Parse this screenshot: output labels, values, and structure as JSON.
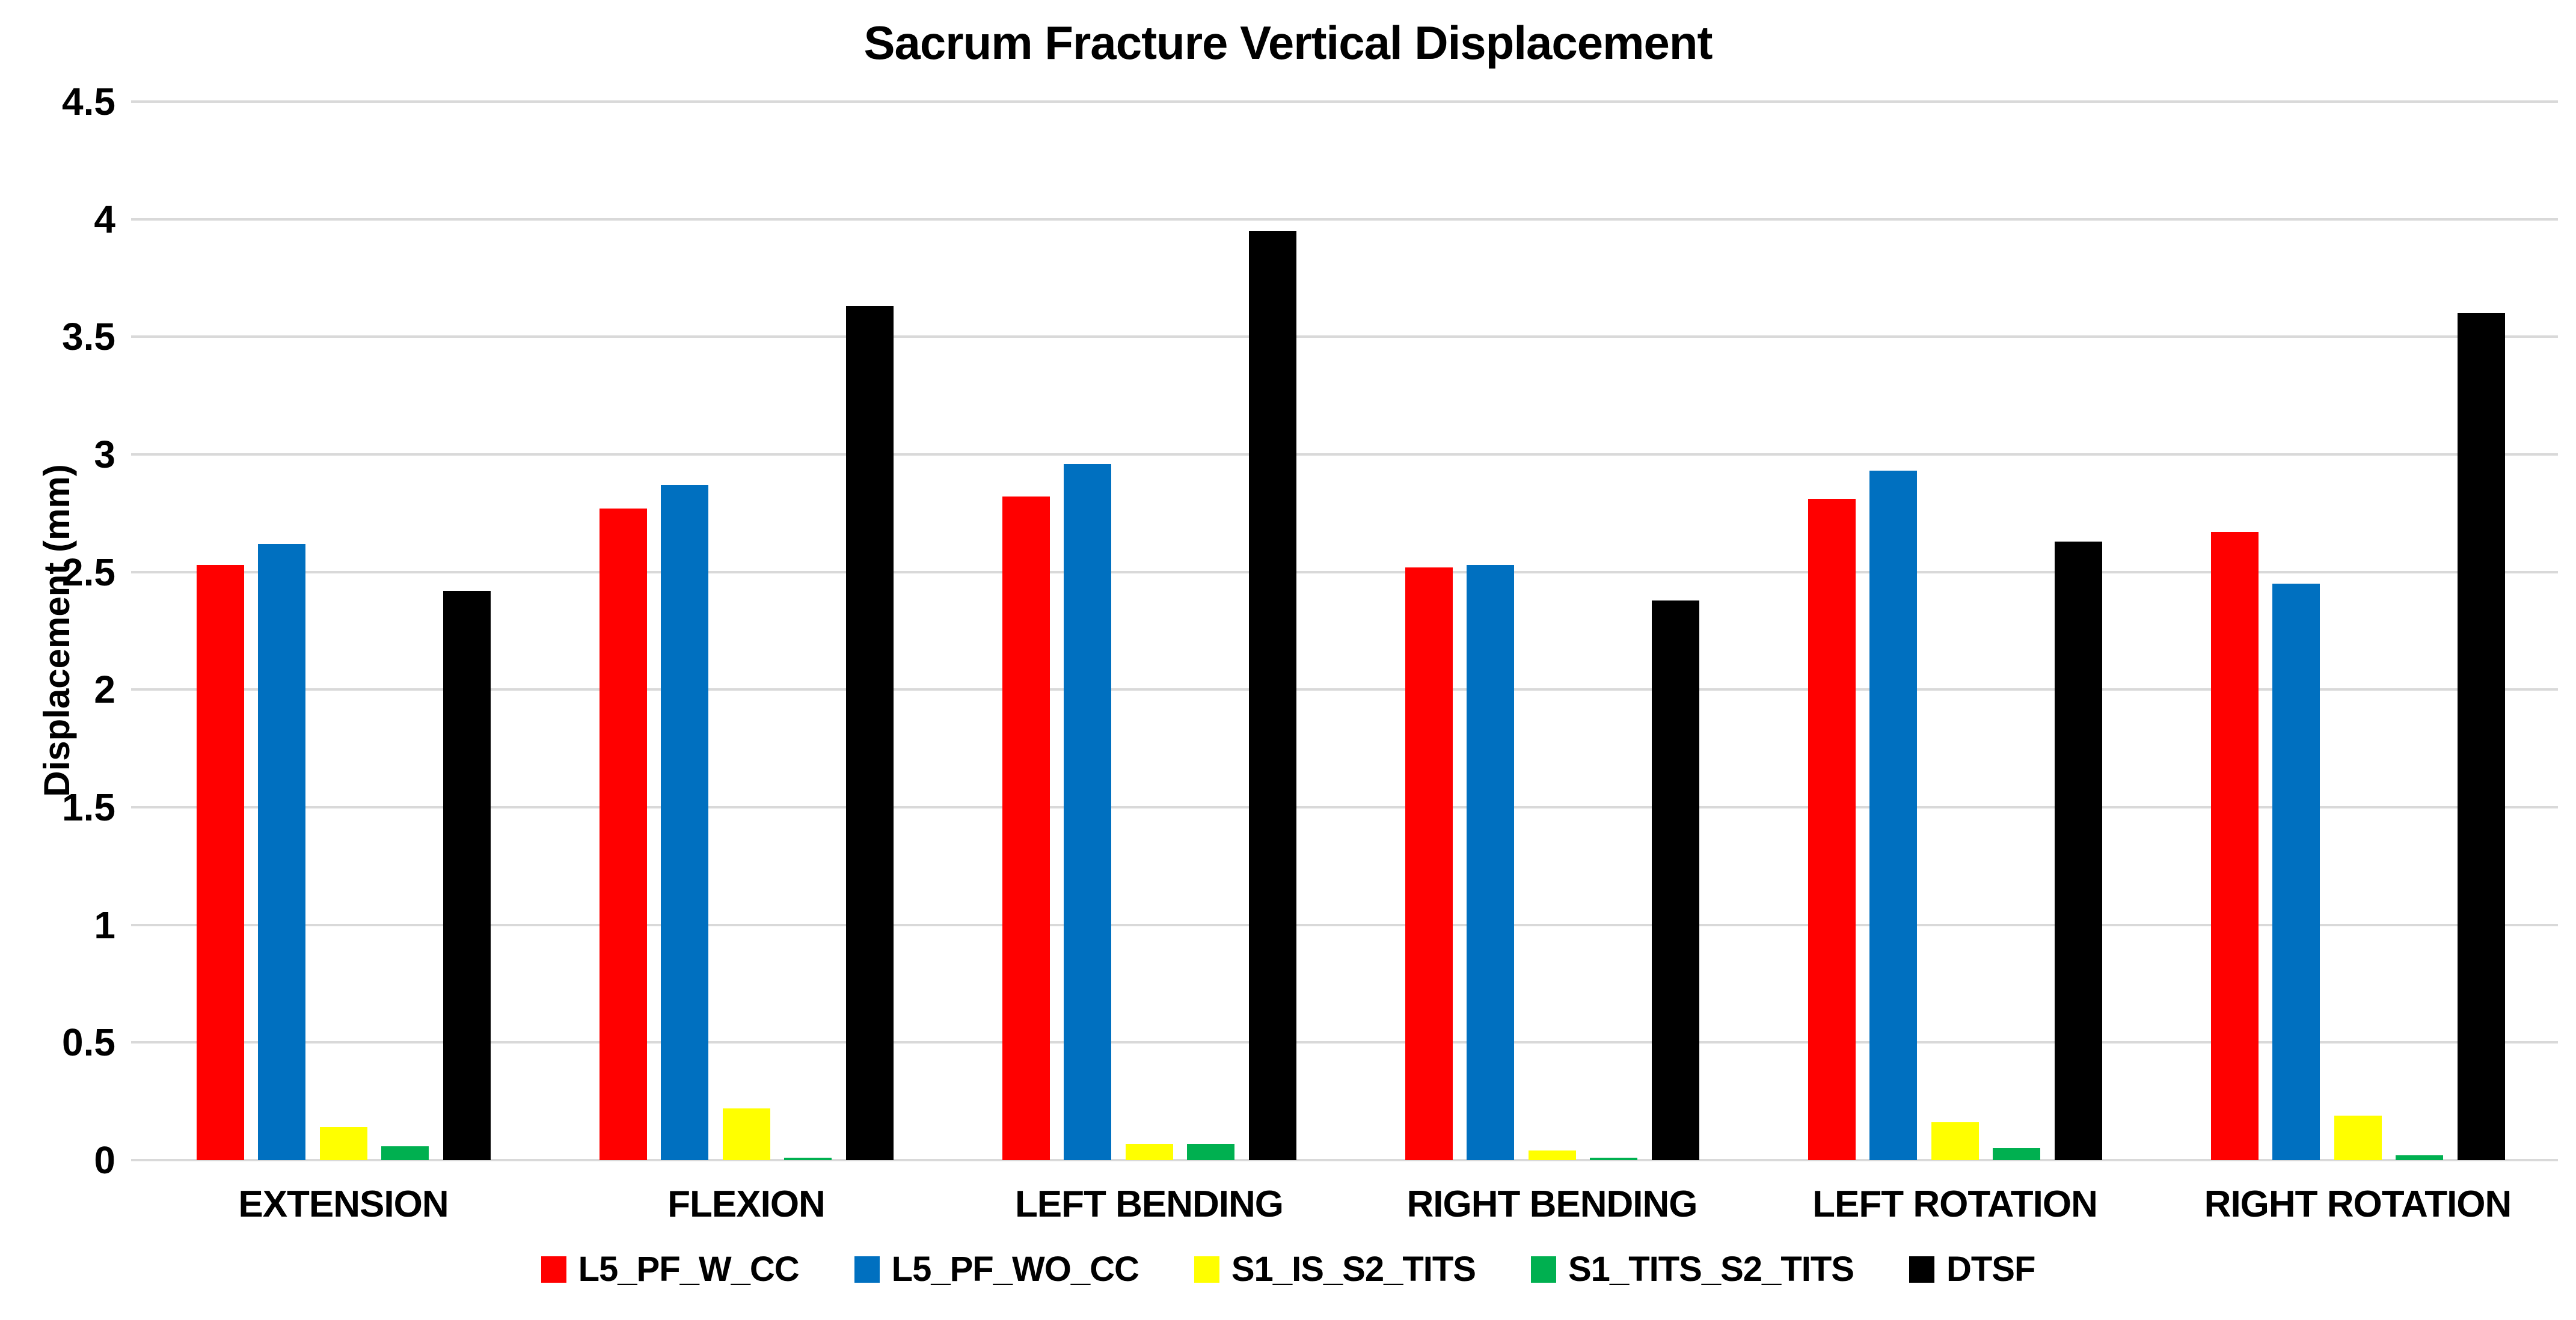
{
  "chart_data": {
    "type": "bar",
    "title": "Sacrum Fracture Vertical Displacement",
    "xlabel": "",
    "ylabel": "Displacement (mm)",
    "ylim": [
      0,
      4.5
    ],
    "ytick_interval": 0.5,
    "ytick_labels": [
      "0",
      "0.5",
      "1",
      "1.5",
      "2",
      "2.5",
      "3",
      "3.5",
      "4",
      "4.5"
    ],
    "grid": "horizontal",
    "gridline_color": "#D9D9D9",
    "text_color": "#000000",
    "background_color": "#FFFFFF",
    "legend_position": "bottom",
    "categories": [
      "EXTENSION",
      "FLEXION",
      "LEFT BENDING",
      "RIGHT BENDING",
      "LEFT ROTATION",
      "RIGHT ROTATION"
    ],
    "series": [
      {
        "name": "L5_PF_W_CC",
        "color": "#FF0000",
        "values": [
          2.53,
          2.77,
          2.82,
          2.52,
          2.81,
          2.67
        ]
      },
      {
        "name": "L5_PF_WO_CC",
        "color": "#0070C0",
        "values": [
          2.62,
          2.87,
          2.96,
          2.53,
          2.93,
          2.45
        ]
      },
      {
        "name": "S1_IS_S2_TITS",
        "color": "#FFFF00",
        "values": [
          0.14,
          0.22,
          0.07,
          0.04,
          0.16,
          0.19
        ]
      },
      {
        "name": "S1_TITS_S2_TITS",
        "color": "#00B050",
        "values": [
          0.06,
          0.01,
          0.07,
          0.01,
          0.05,
          0.02
        ]
      },
      {
        "name": "DTSF",
        "color": "#000000",
        "values": [
          2.42,
          3.63,
          3.95,
          2.38,
          2.63,
          3.6
        ]
      }
    ]
  }
}
